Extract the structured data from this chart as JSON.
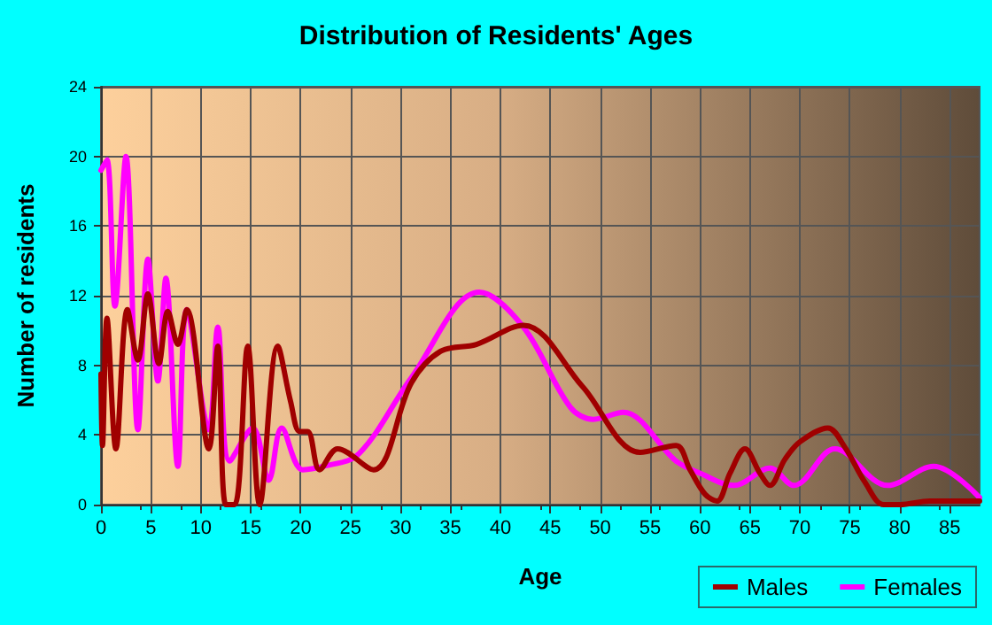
{
  "chart_data": {
    "type": "line",
    "title": "Distribution of Residents' Ages",
    "xlabel": "Age",
    "ylabel": "Number of residents",
    "xlim": [
      0,
      88
    ],
    "xticks": [
      0,
      5,
      10,
      15,
      20,
      25,
      30,
      35,
      40,
      45,
      50,
      55,
      60,
      65,
      70,
      75,
      80,
      85
    ],
    "ylim": [
      0,
      24
    ],
    "yticks": [
      0,
      4,
      8,
      12,
      16,
      20,
      24
    ],
    "grid": true,
    "legend": "bottom right",
    "series": [
      {
        "name": "Males",
        "color": "#a00000",
        "x": [
          0,
          0.15,
          0.6,
          1.5,
          2.65,
          3.7,
          4.7,
          5.8,
          6.7,
          7.7,
          8.6,
          10.8,
          11.7,
          12.5,
          13.4,
          14.7,
          15.9,
          17.7,
          19,
          19.9,
          20.7,
          21.9,
          23.7,
          27.3,
          31.1,
          34,
          37.6,
          42.3,
          48.2,
          54,
          57.6,
          59,
          60.5,
          61.7,
          63,
          64.5,
          66,
          67,
          68.5,
          70,
          72.8,
          74.5,
          76.5,
          78.4,
          80,
          83,
          88
        ],
        "values": [
          7.5,
          3.4,
          10.7,
          3.2,
          11.2,
          8.3,
          12.1,
          8.1,
          11.1,
          9.2,
          11.2,
          3.2,
          9.1,
          0,
          0,
          9.1,
          0,
          9.1,
          5.9,
          4.2,
          4.2,
          2.0,
          3.2,
          2.0,
          7.0,
          8.8,
          9.2,
          10.3,
          6.8,
          3.0,
          3.4,
          2.0,
          0.6,
          0.2,
          1.8,
          3.2,
          1.8,
          1.1,
          2.6,
          3.6,
          4.4,
          3.3,
          1.3,
          0,
          0,
          0.2,
          0.2
        ]
      },
      {
        "name": "Females",
        "color": "#ff00ff",
        "x": [
          0,
          0.6,
          1.4,
          2.5,
          3.7,
          4.7,
          5.7,
          6.5,
          7.7,
          8.6,
          10.8,
          11.7,
          12.9,
          15.2,
          16.8,
          18.1,
          20.2,
          22.3,
          25.8,
          31.1,
          37.9,
          42.3,
          47,
          49.3,
          52.3,
          57.6,
          60,
          63.4,
          67,
          69.4,
          73.5,
          78.8,
          83.4,
          88
        ],
        "values": [
          19.2,
          19.8,
          11.4,
          20,
          4.3,
          14.1,
          7.1,
          13,
          2.2,
          11.2,
          4.3,
          10.2,
          2.5,
          4.4,
          1.4,
          4.4,
          2.0,
          2.2,
          2.9,
          7.3,
          12.2,
          10.2,
          5.6,
          4.9,
          5.3,
          2.5,
          1.8,
          1.1,
          2.1,
          1.1,
          3.2,
          1.1,
          2.2,
          0.4
        ]
      }
    ]
  }
}
